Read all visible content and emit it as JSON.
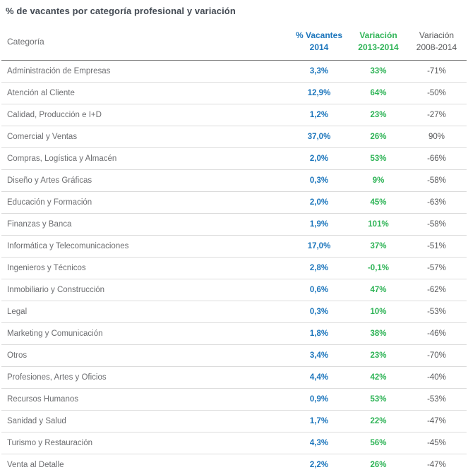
{
  "title": "% de vacantes por categoría profesional y variación",
  "colors": {
    "accent_blue": "#1b75bc",
    "accent_green": "#2fb457",
    "value_dark_gray": "#58595b",
    "category_gray": "#6d6e71",
    "title_dark": "#434a53",
    "header_rule": "#7f7f7f",
    "row_rule": "#dcdcdc",
    "bottom_rule": "#b3b3b3"
  },
  "chart_data": {
    "type": "table",
    "title": "% de vacantes por categoría profesional y variación",
    "columns": [
      {
        "id": "category",
        "label": "Categoría"
      },
      {
        "id": "vacantes_2014",
        "label": "% Vacantes\n2014"
      },
      {
        "id": "variacion_2013_2014",
        "label": "Variación\n2013-2014"
      },
      {
        "id": "variacion_2008_2014",
        "label": "Variación\n2008-2014"
      }
    ],
    "rows": [
      {
        "category": "Administración de Empresas",
        "vacantes_2014": "3,3%",
        "variacion_2013_2014": "33%",
        "variacion_2008_2014": "-71%"
      },
      {
        "category": "Atención al Cliente",
        "vacantes_2014": "12,9%",
        "variacion_2013_2014": "64%",
        "variacion_2008_2014": "-50%"
      },
      {
        "category": "Calidad, Producción e I+D",
        "vacantes_2014": "1,2%",
        "variacion_2013_2014": "23%",
        "variacion_2008_2014": "-27%"
      },
      {
        "category": "Comercial y Ventas",
        "vacantes_2014": "37,0%",
        "variacion_2013_2014": "26%",
        "variacion_2008_2014": "90%"
      },
      {
        "category": "Compras, Logística y Almacén",
        "vacantes_2014": "2,0%",
        "variacion_2013_2014": "53%",
        "variacion_2008_2014": "-66%"
      },
      {
        "category": "Diseño y Artes Gráficas",
        "vacantes_2014": "0,3%",
        "variacion_2013_2014": "9%",
        "variacion_2008_2014": "-58%"
      },
      {
        "category": "Educación y Formación",
        "vacantes_2014": "2,0%",
        "variacion_2013_2014": "45%",
        "variacion_2008_2014": "-63%"
      },
      {
        "category": "Finanzas y Banca",
        "vacantes_2014": "1,9%",
        "variacion_2013_2014": "101%",
        "variacion_2008_2014": "-58%"
      },
      {
        "category": "Informática y Telecomunicaciones",
        "vacantes_2014": "17,0%",
        "variacion_2013_2014": "37%",
        "variacion_2008_2014": "-51%"
      },
      {
        "category": "Ingenieros y Técnicos",
        "vacantes_2014": "2,8%",
        "variacion_2013_2014": "-0,1%",
        "variacion_2008_2014": "-57%"
      },
      {
        "category": "Inmobiliario y Construcción",
        "vacantes_2014": "0,6%",
        "variacion_2013_2014": "47%",
        "variacion_2008_2014": "-62%"
      },
      {
        "category": "Legal",
        "vacantes_2014": "0,3%",
        "variacion_2013_2014": "10%",
        "variacion_2008_2014": "-53%"
      },
      {
        "category": "Marketing y Comunicación",
        "vacantes_2014": "1,8%",
        "variacion_2013_2014": "38%",
        "variacion_2008_2014": "-46%"
      },
      {
        "category": "Otros",
        "vacantes_2014": "3,4%",
        "variacion_2013_2014": "23%",
        "variacion_2008_2014": "-70%"
      },
      {
        "category": "Profesiones, Artes y Oficios",
        "vacantes_2014": "4,4%",
        "variacion_2013_2014": "42%",
        "variacion_2008_2014": "-40%"
      },
      {
        "category": "Recursos Humanos",
        "vacantes_2014": "0,9%",
        "variacion_2013_2014": "53%",
        "variacion_2008_2014": "-53%"
      },
      {
        "category": "Sanidad y Salud",
        "vacantes_2014": "1,7%",
        "variacion_2013_2014": "22%",
        "variacion_2008_2014": "-47%"
      },
      {
        "category": "Turismo y Restauración",
        "vacantes_2014": "4,3%",
        "variacion_2013_2014": "56%",
        "variacion_2008_2014": "-45%"
      },
      {
        "category": "Venta al Detalle",
        "vacantes_2014": "2,2%",
        "variacion_2013_2014": "26%",
        "variacion_2008_2014": "-47%"
      }
    ]
  }
}
